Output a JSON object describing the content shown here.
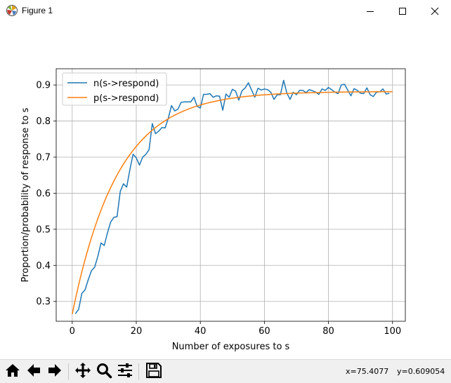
{
  "window": {
    "title": "Figure 1",
    "icon": "matplotlib-logo-icon",
    "controls": [
      "minimize-icon",
      "maximize-icon",
      "close-icon"
    ]
  },
  "toolbar": {
    "buttons": [
      {
        "name": "home",
        "icon": "home-icon"
      },
      {
        "name": "back",
        "icon": "arrow-left-icon"
      },
      {
        "name": "forward",
        "icon": "arrow-right-icon"
      },
      {
        "name": "pan",
        "icon": "move-cross-icon"
      },
      {
        "name": "zoom",
        "icon": "magnifier-icon"
      },
      {
        "name": "configure-subplots",
        "icon": "sliders-icon"
      },
      {
        "name": "save",
        "icon": "floppy-disk-icon"
      }
    ],
    "coord_x": "x=75.4077",
    "coord_y": "y=0.609054"
  },
  "chart_data": {
    "type": "line",
    "title": "",
    "xlabel": "Number of exposures to s",
    "ylabel": "Proportion/probability of response to s",
    "xlim": [
      -5,
      104
    ],
    "ylim": [
      0.245,
      0.945
    ],
    "xticks": [
      0,
      20,
      40,
      60,
      80,
      100
    ],
    "xtick_labels": [
      "0",
      "20",
      "40",
      "60",
      "80",
      "100"
    ],
    "yticks": [
      0.3,
      0.4,
      0.5,
      0.6,
      0.7,
      0.8,
      0.9
    ],
    "ytick_labels": [
      "0.3",
      "0.4",
      "0.5",
      "0.6",
      "0.7",
      "0.8",
      "0.9"
    ],
    "grid": true,
    "legend_position": "upper-left",
    "series": [
      {
        "name": "n(s->respond)",
        "color": "#1f77b4",
        "x": [
          1,
          2,
          3,
          4,
          5,
          6,
          7,
          8,
          9,
          10,
          11,
          12,
          13,
          14,
          15,
          16,
          17,
          18,
          19,
          20,
          21,
          22,
          23,
          24,
          25,
          26,
          27,
          28,
          29,
          30,
          31,
          32,
          33,
          34,
          35,
          36,
          37,
          38,
          39,
          40,
          41,
          42,
          43,
          44,
          45,
          46,
          47,
          48,
          49,
          50,
          51,
          52,
          53,
          54,
          55,
          56,
          57,
          58,
          59,
          60,
          61,
          62,
          63,
          64,
          65,
          66,
          67,
          68,
          69,
          70,
          71,
          72,
          73,
          74,
          75,
          76,
          77,
          78,
          79,
          80,
          81,
          82,
          83,
          84,
          85,
          86,
          87,
          88,
          89,
          90,
          91,
          92,
          93,
          94,
          95,
          96,
          97,
          98,
          99
        ],
        "y": [
          0.266,
          0.278,
          0.322,
          0.332,
          0.36,
          0.385,
          0.395,
          0.425,
          0.462,
          0.455,
          0.49,
          0.52,
          0.533,
          0.535,
          0.605,
          0.626,
          0.617,
          0.665,
          0.708,
          0.698,
          0.678,
          0.7,
          0.708,
          0.721,
          0.793,
          0.765,
          0.772,
          0.782,
          0.781,
          0.808,
          0.843,
          0.828,
          0.833,
          0.852,
          0.853,
          0.853,
          0.853,
          0.866,
          0.841,
          0.836,
          0.874,
          0.874,
          0.876,
          0.866,
          0.87,
          0.869,
          0.83,
          0.875,
          0.866,
          0.888,
          0.883,
          0.858,
          0.884,
          0.892,
          0.906,
          0.886,
          0.866,
          0.891,
          0.886,
          0.889,
          0.887,
          0.88,
          0.86,
          0.873,
          0.873,
          0.913,
          0.878,
          0.86,
          0.88,
          0.873,
          0.885,
          0.885,
          0.879,
          0.887,
          0.884,
          0.88,
          0.874,
          0.889,
          0.885,
          0.893,
          0.887,
          0.88,
          0.876,
          0.9,
          0.902,
          0.886,
          0.87,
          0.89,
          0.885,
          0.877,
          0.876,
          0.892,
          0.873,
          0.868,
          0.88,
          0.881,
          0.889,
          0.875,
          0.877
        ]
      },
      {
        "name": "p(s->respond)",
        "color": "#ff7f0e",
        "model": {
          "type": "exponential_saturation",
          "start": 0.265,
          "asymptote": 0.882,
          "rate": 0.07,
          "x_from": 0,
          "x_to": 100,
          "samples": 101
        }
      }
    ]
  }
}
